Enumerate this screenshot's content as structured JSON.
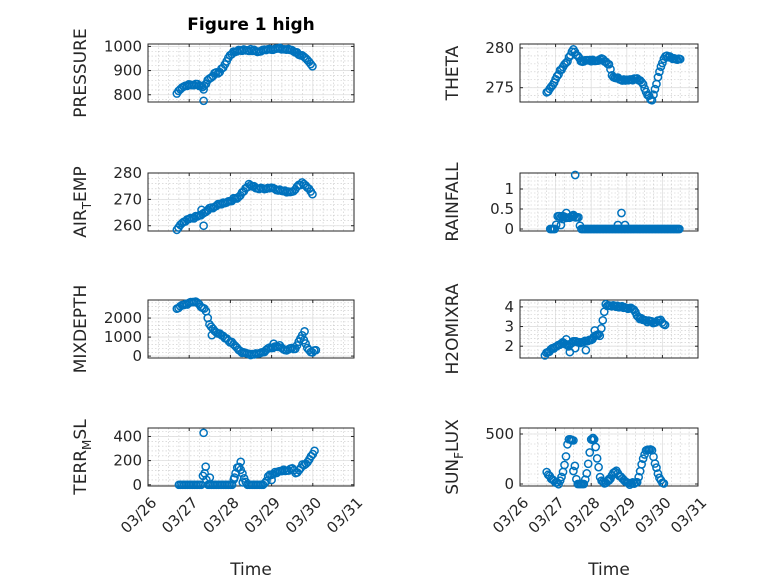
{
  "colors": {
    "marker": "#0072BD",
    "axis": "#262626",
    "background": "#ffffff"
  },
  "chart_data": [
    {
      "type": "scatter",
      "title": "Figure 1 high",
      "ylabel": "PRESSURE",
      "xlabel": "",
      "xlim": [
        0,
        5
      ],
      "ylim": [
        770,
        1010
      ],
      "yticks": [
        800,
        900,
        1000
      ],
      "xticklabels": [],
      "series": [
        {
          "name": "PRESSURE",
          "x": [],
          "y": []
        }
      ],
      "knots": [
        [
          0.7,
          805
        ],
        [
          0.8,
          830
        ],
        [
          0.95,
          840
        ],
        [
          1.05,
          840
        ],
        [
          1.2,
          843
        ],
        [
          1.35,
          832
        ],
        [
          1.45,
          860
        ],
        [
          1.6,
          885
        ],
        [
          1.75,
          895
        ],
        [
          1.9,
          935
        ],
        [
          2.0,
          968
        ],
        [
          2.2,
          985
        ],
        [
          2.5,
          985
        ],
        [
          2.7,
          978
        ],
        [
          2.9,
          990
        ],
        [
          3.2,
          990
        ],
        [
          3.5,
          985
        ],
        [
          3.75,
          960
        ],
        [
          3.9,
          935
        ],
        [
          4.0,
          915
        ]
      ],
      "extra": [
        [
          1.35,
          775
        ],
        [
          1.35,
          822
        ]
      ]
    },
    {
      "type": "scatter",
      "title": "",
      "ylabel": "THETA",
      "xlabel": "",
      "xlim": [
        0,
        5
      ],
      "ylim": [
        273.2,
        280.5
      ],
      "yticks": [
        275,
        280
      ],
      "xticklabels": [],
      "series": [
        {
          "name": "THETA",
          "x": [],
          "y": []
        }
      ],
      "knots": [
        [
          0.75,
          274.4
        ],
        [
          0.95,
          275.6
        ],
        [
          1.15,
          277.3
        ],
        [
          1.35,
          278.5
        ],
        [
          1.5,
          279.8
        ],
        [
          1.7,
          278.4
        ],
        [
          2.0,
          278.4
        ],
        [
          2.3,
          278.6
        ],
        [
          2.5,
          278.0
        ],
        [
          2.6,
          276.4
        ],
        [
          2.9,
          276.0
        ],
        [
          3.3,
          276.1
        ],
        [
          3.45,
          275.5
        ],
        [
          3.55,
          274.4
        ],
        [
          3.7,
          273.4
        ],
        [
          3.8,
          275.0
        ],
        [
          3.95,
          277.6
        ],
        [
          4.1,
          279.1
        ],
        [
          4.3,
          278.6
        ],
        [
          4.5,
          278.5
        ]
      ],
      "extra": []
    },
    {
      "type": "scatter",
      "title": "",
      "ylabel": "AIR",
      "ylabel_sub": "T",
      "ylabel_rest": "EMP",
      "xlabel": "",
      "xlim": [
        0,
        5
      ],
      "ylim": [
        258,
        280
      ],
      "yticks": [
        260,
        270,
        280
      ],
      "xticklabels": [],
      "series": [
        {
          "name": "AIR_TEMP",
          "x": [],
          "y": []
        }
      ],
      "knots": [
        [
          0.7,
          258.5
        ],
        [
          0.8,
          260.5
        ],
        [
          1.0,
          262.5
        ],
        [
          1.2,
          263.5
        ],
        [
          1.35,
          264.5
        ],
        [
          1.5,
          266.5
        ],
        [
          1.8,
          268.5
        ],
        [
          2.0,
          269.5
        ],
        [
          2.2,
          271
        ],
        [
          2.45,
          275.5
        ],
        [
          2.7,
          274
        ],
        [
          3.0,
          274.5
        ],
        [
          3.3,
          273
        ],
        [
          3.5,
          273
        ],
        [
          3.75,
          276.5
        ],
        [
          3.85,
          275
        ],
        [
          4.0,
          272
        ]
      ],
      "extra": [
        [
          1.35,
          260
        ],
        [
          1.3,
          266
        ],
        [
          1.45,
          266
        ]
      ]
    },
    {
      "type": "scatter",
      "title": "",
      "ylabel": "RAINFALL",
      "xlabel": "",
      "xlim": [
        0,
        5
      ],
      "ylim": [
        -0.05,
        1.4
      ],
      "yticks": [
        0,
        0.5,
        1
      ],
      "xticklabels": [],
      "series": [
        {
          "name": "RAINFALL",
          "x": [],
          "y": []
        }
      ],
      "knots": [
        [
          0.85,
          0
        ],
        [
          1.0,
          0
        ],
        [
          1.05,
          0.3
        ],
        [
          1.25,
          0.3
        ],
        [
          1.4,
          0.3
        ],
        [
          1.65,
          0.3
        ],
        [
          1.7,
          0
        ],
        [
          2.5,
          0
        ],
        [
          3.2,
          0
        ],
        [
          4.5,
          0
        ]
      ],
      "extra": [
        [
          1.15,
          0.1
        ],
        [
          1.55,
          1.35
        ],
        [
          1.3,
          0.4
        ],
        [
          2.85,
          0.4
        ],
        [
          2.75,
          0.1
        ],
        [
          2.95,
          0.1
        ],
        [
          1.5,
          0.35
        ],
        [
          1.2,
          0.25
        ]
      ]
    },
    {
      "type": "scatter",
      "title": "",
      "ylabel": "MIXDEPTH",
      "xlabel": "",
      "xlim": [
        0,
        5
      ],
      "ylim": [
        -100,
        2950
      ],
      "yticks": [
        0,
        1000,
        2000
      ],
      "xticklabels": [],
      "series": [
        {
          "name": "MIXDEPTH",
          "x": [],
          "y": []
        }
      ],
      "knots": [
        [
          0.7,
          2450
        ],
        [
          0.85,
          2700
        ],
        [
          1.05,
          2800
        ],
        [
          1.15,
          2900
        ],
        [
          1.3,
          2600
        ],
        [
          1.4,
          2400
        ],
        [
          1.5,
          1600
        ],
        [
          1.7,
          1200
        ],
        [
          1.9,
          900
        ],
        [
          2.1,
          600
        ],
        [
          2.3,
          150
        ],
        [
          2.5,
          100
        ],
        [
          2.8,
          200
        ],
        [
          2.95,
          450
        ],
        [
          3.2,
          550
        ],
        [
          3.35,
          300
        ],
        [
          3.6,
          450
        ],
        [
          3.75,
          1100
        ],
        [
          3.8,
          700
        ],
        [
          3.95,
          200
        ],
        [
          4.1,
          350
        ]
      ],
      "extra": [
        [
          1.55,
          1100
        ],
        [
          3.8,
          1300
        ],
        [
          3.05,
          650
        ]
      ]
    },
    {
      "type": "scatter",
      "title": "",
      "ylabel": "H2OMIXRA",
      "xlabel": "",
      "xlim": [
        0,
        5
      ],
      "ylim": [
        1.4,
        4.35
      ],
      "yticks": [
        2,
        3,
        4
      ],
      "xticklabels": [],
      "series": [
        {
          "name": "H2OMIXRA",
          "x": [],
          "y": []
        }
      ],
      "knots": [
        [
          0.7,
          1.55
        ],
        [
          0.85,
          1.8
        ],
        [
          1.0,
          2.0
        ],
        [
          1.2,
          2.2
        ],
        [
          1.35,
          2.0
        ],
        [
          1.5,
          2.3
        ],
        [
          1.7,
          2.2
        ],
        [
          2.0,
          2.3
        ],
        [
          2.15,
          2.6
        ],
        [
          2.25,
          2.55
        ],
        [
          2.4,
          4.1
        ],
        [
          2.6,
          4.05
        ],
        [
          2.9,
          4.0
        ],
        [
          3.2,
          3.9
        ],
        [
          3.3,
          3.5
        ],
        [
          3.5,
          3.3
        ],
        [
          3.75,
          3.2
        ],
        [
          3.95,
          3.3
        ],
        [
          4.1,
          3.0
        ]
      ],
      "extra": [
        [
          1.4,
          1.7
        ],
        [
          1.55,
          1.9
        ],
        [
          1.85,
          1.8
        ],
        [
          2.1,
          2.8
        ],
        [
          1.3,
          2.35
        ]
      ]
    },
    {
      "type": "scatter",
      "title": "",
      "ylabel": "TERR",
      "ylabel_sub": "M",
      "ylabel_rest": "SL",
      "xlabel": "Time",
      "xlim": [
        0,
        5
      ],
      "ylim": [
        -10,
        470
      ],
      "yticks": [
        0,
        200,
        400
      ],
      "xticklabels": [
        "03/26",
        "03/27",
        "03/28",
        "03/29",
        "03/30",
        "03/31"
      ],
      "series": [
        {
          "name": "TERR_MSL",
          "x": [],
          "y": []
        }
      ],
      "knots": [
        [
          0.75,
          0
        ],
        [
          1.3,
          0
        ],
        [
          1.35,
          120
        ],
        [
          1.45,
          0
        ],
        [
          2.05,
          0
        ],
        [
          2.15,
          130
        ],
        [
          2.2,
          160
        ],
        [
          2.3,
          90
        ],
        [
          2.4,
          0
        ],
        [
          2.8,
          0
        ],
        [
          2.95,
          80
        ],
        [
          3.1,
          100
        ],
        [
          3.3,
          120
        ],
        [
          3.5,
          130
        ],
        [
          3.6,
          100
        ],
        [
          3.75,
          160
        ],
        [
          3.9,
          200
        ],
        [
          4.05,
          290
        ]
      ],
      "extra": [
        [
          1.35,
          430
        ],
        [
          1.4,
          150
        ],
        [
          2.25,
          190
        ],
        [
          2.3,
          20
        ],
        [
          3.0,
          40
        ],
        [
          1.5,
          60
        ],
        [
          2.1,
          60
        ]
      ]
    },
    {
      "type": "scatter",
      "title": "",
      "ylabel": "SUN",
      "ylabel_sub": "F",
      "ylabel_rest": "LUX",
      "xlabel": "Time",
      "xlim": [
        0,
        5
      ],
      "ylim": [
        -20,
        560
      ],
      "yticks": [
        0,
        500
      ],
      "xticklabels": [
        "03/26",
        "03/27",
        "03/28",
        "03/29",
        "03/30",
        "03/31"
      ],
      "series": [
        {
          "name": "SUN_FLUX",
          "x": [],
          "y": []
        }
      ],
      "knots": [
        [
          0.75,
          120
        ],
        [
          0.9,
          50
        ],
        [
          1.0,
          10
        ],
        [
          1.1,
          0
        ],
        [
          1.2,
          100
        ],
        [
          1.3,
          300
        ],
        [
          1.35,
          450
        ],
        [
          1.5,
          430
        ],
        [
          1.55,
          120
        ],
        [
          1.6,
          0
        ],
        [
          1.8,
          0
        ],
        [
          1.9,
          150
        ],
        [
          2.0,
          440
        ],
        [
          2.1,
          450
        ],
        [
          2.15,
          300
        ],
        [
          2.25,
          60
        ],
        [
          2.4,
          0
        ],
        [
          2.5,
          30
        ],
        [
          2.6,
          100
        ],
        [
          2.7,
          130
        ],
        [
          2.8,
          80
        ],
        [
          2.95,
          20
        ],
        [
          3.1,
          0
        ],
        [
          3.3,
          20
        ],
        [
          3.45,
          250
        ],
        [
          3.55,
          350
        ],
        [
          3.7,
          350
        ],
        [
          3.8,
          200
        ],
        [
          3.9,
          80
        ],
        [
          4.0,
          20
        ],
        [
          4.05,
          0
        ]
      ],
      "extra": [
        [
          1.45,
          440
        ],
        [
          1.5,
          130
        ],
        [
          2.05,
          460
        ],
        [
          2.5,
          50
        ]
      ]
    }
  ]
}
